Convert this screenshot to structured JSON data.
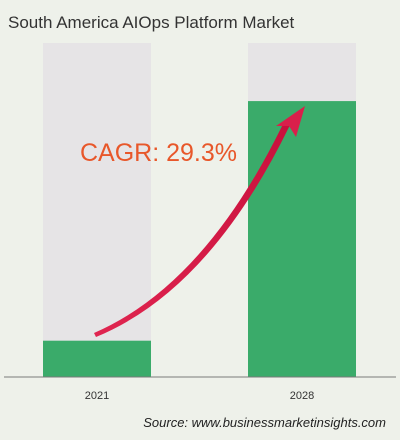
{
  "chart_data": {
    "type": "bar",
    "title": "South America AIOps Platform Market",
    "categories": [
      "2021",
      "2028"
    ],
    "values": [
      1,
      7.6
    ],
    "ymax": 9.2,
    "annotation": "CAGR: 29.3%",
    "source": "Source: www.businessmarketinsights.com",
    "grid": false,
    "legend": "none"
  },
  "colors": {
    "background": "#eef1ea",
    "bar": "#3aab6a",
    "bar_track": "#e6e4e6",
    "axis": "#7a7a7a",
    "arrow": "#d91f4b",
    "annotation_text": "#e8572a"
  }
}
